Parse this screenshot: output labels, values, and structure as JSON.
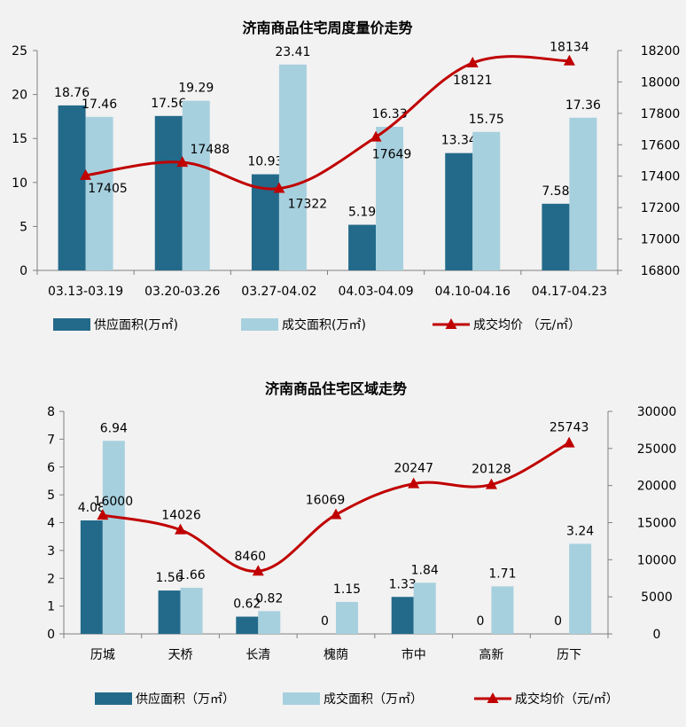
{
  "chart_data": [
    {
      "type": "bar",
      "title": "济南商品住宅周度量价走势",
      "categories": [
        "03.13-03.19",
        "03.20-03.26",
        "03.27-04.02",
        "04.03-04.09",
        "04.10-04.16",
        "04.17-04.23"
      ],
      "series": [
        {
          "name": "供应面积(万㎡)",
          "type": "bar",
          "axis": "left",
          "color": "#236a8a",
          "values": [
            18.76,
            17.56,
            10.93,
            5.19,
            13.34,
            7.58
          ],
          "labels": [
            "18.76",
            "17.56",
            "10.93",
            "5.19",
            "13.34",
            "7.58"
          ]
        },
        {
          "name": "成交面积(万㎡)",
          "type": "bar",
          "axis": "left",
          "color": "#a7d0de",
          "values": [
            17.46,
            19.29,
            23.41,
            16.33,
            15.75,
            17.36
          ],
          "labels": [
            "17.46",
            "19.29",
            "23.41",
            "16.33",
            "15.75",
            "17.36"
          ]
        },
        {
          "name": "成交均价 （元/㎡）",
          "type": "line",
          "axis": "right",
          "color": "#c00000",
          "values": [
            17405,
            17488,
            17322,
            17649,
            18121,
            18134
          ],
          "labels": [
            "17405",
            "17488",
            "17322",
            "17649",
            "18121",
            "18134"
          ]
        }
      ],
      "ylim_left": [
        0,
        25
      ],
      "yticks_left": [
        "0",
        "5",
        "10",
        "15",
        "20",
        "25"
      ],
      "ylim_right": [
        16800,
        18200
      ],
      "yticks_right": [
        "16800",
        "17000",
        "17200",
        "17400",
        "17600",
        "17800",
        "18000",
        "18200"
      ],
      "legend": "bottom",
      "grid": false
    },
    {
      "type": "bar",
      "title": "济南商品住宅区域走势",
      "categories": [
        "历城",
        "天桥",
        "长清",
        "槐荫",
        "市中",
        "高新",
        "历下"
      ],
      "series": [
        {
          "name": "供应面积（万㎡）",
          "type": "bar",
          "axis": "left",
          "color": "#236a8a",
          "values": [
            4.08,
            1.56,
            0.62,
            0,
            1.33,
            0,
            0
          ],
          "labels": [
            "4.08",
            "1.56",
            "0.62",
            "0",
            "1.33",
            "0",
            "0"
          ]
        },
        {
          "name": "成交面积（万㎡）",
          "type": "bar",
          "axis": "left",
          "color": "#a7d0de",
          "values": [
            6.94,
            1.66,
            0.82,
            1.15,
            1.84,
            1.71,
            3.24
          ],
          "labels": [
            "6.94",
            "1.66",
            "0.82",
            "1.15",
            "1.84",
            "1.71",
            "3.24"
          ]
        },
        {
          "name": "成交均价（元/㎡）",
          "type": "line",
          "axis": "right",
          "color": "#c00000",
          "values": [
            16000,
            14026,
            8460,
            16069,
            20247,
            20128,
            25743
          ],
          "labels": [
            "16000",
            "14026",
            "8460",
            "16069",
            "20247",
            "20128",
            "25743"
          ]
        }
      ],
      "ylim_left": [
        0,
        8
      ],
      "yticks_left": [
        "0",
        "1",
        "2",
        "3",
        "4",
        "5",
        "6",
        "7",
        "8"
      ],
      "ylim_right": [
        0,
        30000
      ],
      "yticks_right": [
        "0",
        "5000",
        "10000",
        "15000",
        "20000",
        "25000",
        "30000"
      ],
      "legend": "bottom",
      "grid": false
    }
  ]
}
